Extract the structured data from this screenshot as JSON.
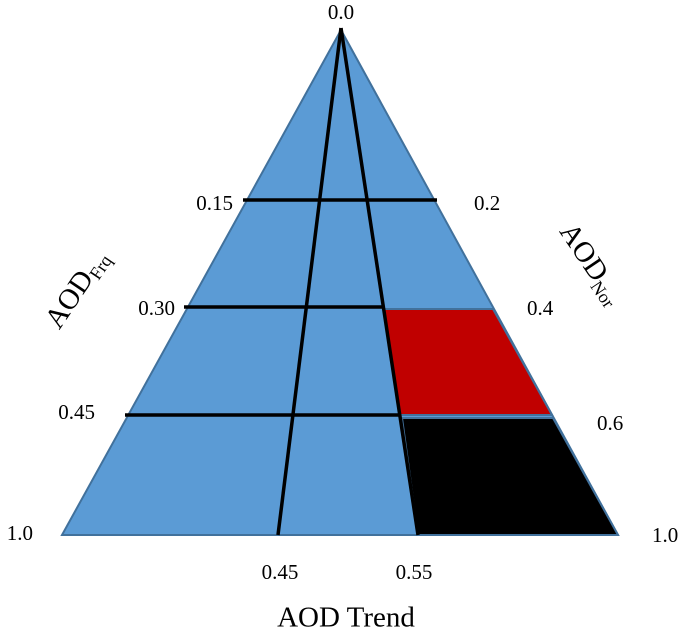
{
  "apex_label": "0.0",
  "left_axis": {
    "title": "AOD",
    "subscript": "Frq",
    "ticks": [
      "0.15",
      "0.30",
      "0.45",
      "1.0"
    ]
  },
  "right_axis": {
    "title": "AOD",
    "subscript": "Nor",
    "ticks": [
      "0.2",
      "0.4",
      "0.6",
      "1.0"
    ]
  },
  "bottom_axis": {
    "title": "AOD Trend",
    "ticks": [
      "0.45",
      "0.55"
    ]
  }
}
